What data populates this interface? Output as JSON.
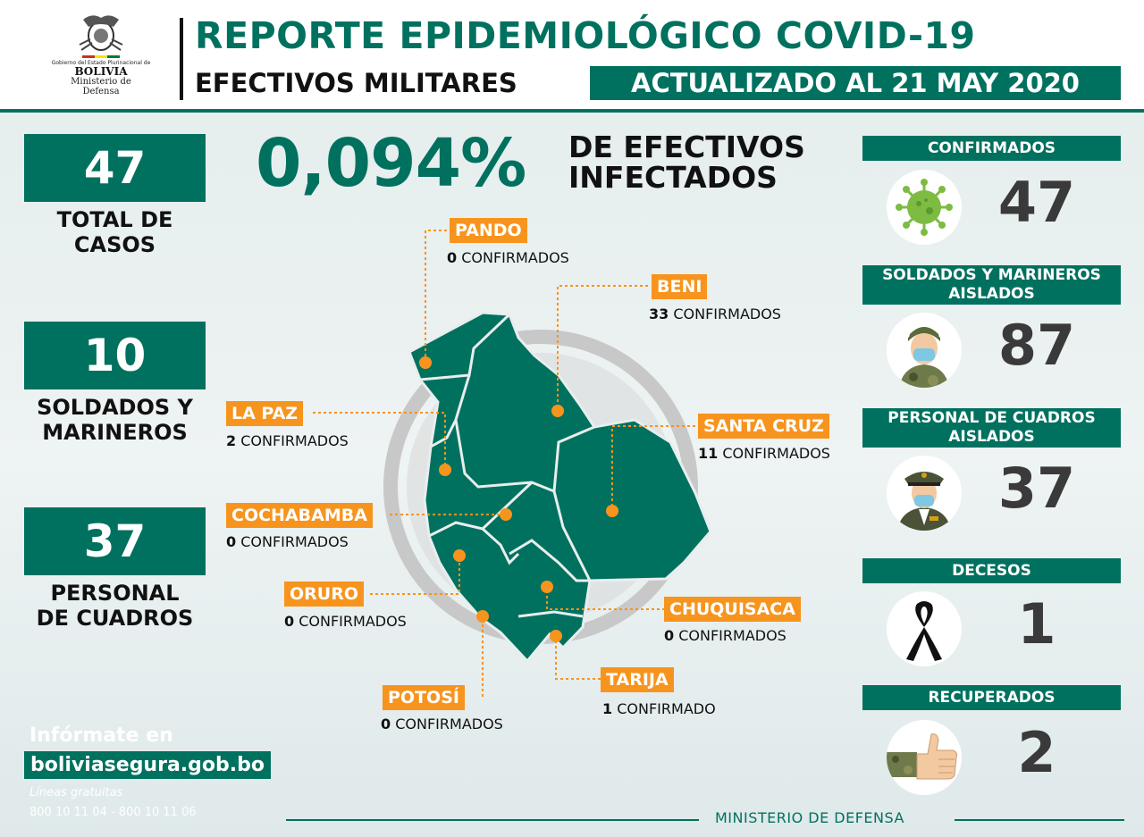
{
  "header": {
    "logo_line1": "Gobierno del Estado Plurinacional de",
    "logo_line2": "BOLIVIA",
    "logo_line3": "Ministerio de",
    "logo_line4": "Defensa",
    "title": "REPORTE EPIDEMIOLÓGICO COVID-19",
    "subtitle": "EFECTIVOS MILITARES",
    "updated": "ACTUALIZADO AL  21 MAY 2020"
  },
  "left_stats": [
    {
      "value": "47",
      "label1": "TOTAL DE",
      "label2": "CASOS"
    },
    {
      "value": "10",
      "label1": "SOLDADOS Y",
      "label2": "MARINEROS"
    },
    {
      "value": "37",
      "label1": "PERSONAL",
      "label2": "DE CUADROS"
    }
  ],
  "headline": {
    "percent": "0,094%",
    "label1": "DE EFECTIVOS",
    "label2": "INFECTADOS"
  },
  "departments": [
    {
      "name": "PANDO",
      "count": "0",
      "unit": "CONFIRMADOS"
    },
    {
      "name": "BENI",
      "count": "33",
      "unit": "CONFIRMADOS"
    },
    {
      "name": "LA PAZ",
      "count": "2",
      "unit": "CONFIRMADOS"
    },
    {
      "name": "SANTA CRUZ",
      "count": "11",
      "unit": "CONFIRMADOS"
    },
    {
      "name": "COCHABAMBA",
      "count": "0",
      "unit": "CONFIRMADOS"
    },
    {
      "name": "ORURO",
      "count": "0",
      "unit": "CONFIRMADOS"
    },
    {
      "name": "CHUQUISACA",
      "count": "0",
      "unit": "CONFIRMADOS"
    },
    {
      "name": "POTOSÍ",
      "count": "0",
      "unit": "CONFIRMADOS"
    },
    {
      "name": "TARIJA",
      "count": "1",
      "unit": "CONFIRMADO"
    }
  ],
  "right_stats": [
    {
      "label": "CONFIRMADOS",
      "value": "47",
      "icon": "virus-icon"
    },
    {
      "label": "SOLDADOS Y MARINEROS AISLADOS",
      "value": "87",
      "icon": "soldier-icon"
    },
    {
      "label": "PERSONAL DE CUADROS AISLADOS",
      "value": "37",
      "icon": "officer-icon"
    },
    {
      "label": "DECESOS",
      "value": "1",
      "icon": "mourning-ribbon-icon"
    },
    {
      "label": "RECUPERADOS",
      "value": "2",
      "icon": "thumbs-up-icon"
    }
  ],
  "info": {
    "line1": "Infórmate en",
    "website": "boliviasegura.gob.bo",
    "lines_label": "Líneas gratuitas",
    "phones": "800 10 11 04 - 800 10 11 06"
  },
  "footer": "MINISTERIO DE DEFENSA",
  "colors": {
    "primary": "#00715f",
    "accent": "#f7941d",
    "text": "#111111"
  }
}
